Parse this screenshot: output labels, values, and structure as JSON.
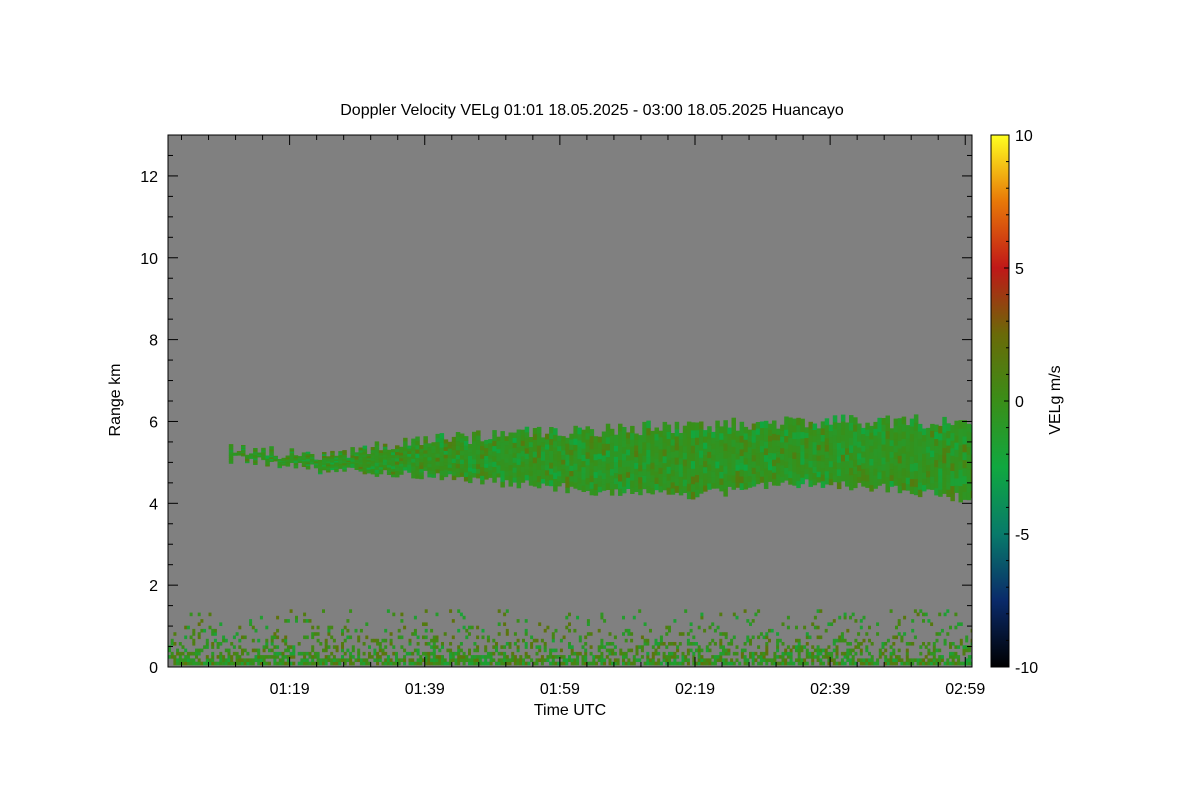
{
  "chart_data": {
    "type": "heatmap",
    "title": "Doppler Velocity VELg   01:01 18.05.2025 - 03:00 18.05.2025 Huancayo",
    "xlabel": "Time UTC",
    "ylabel": "Range km",
    "x_tick_labels": [
      "01:19",
      "01:39",
      "01:59",
      "02:19",
      "02:39",
      "02:59"
    ],
    "x_ticks_minutes_utc": [
      79,
      99,
      119,
      139,
      159,
      179
    ],
    "xlim_minutes_utc": [
      61,
      180
    ],
    "y_ticks": [
      0,
      2,
      4,
      6,
      8,
      10,
      12
    ],
    "y_tick_labels": [
      "0",
      "2",
      "4",
      "6",
      "8",
      "10",
      "12"
    ],
    "ylim": [
      0,
      13
    ],
    "colorbar": {
      "label": "VELg m/s",
      "range": [
        -10,
        10
      ],
      "ticks": [
        -10,
        -5,
        0,
        5,
        10
      ],
      "tick_labels": [
        "-10",
        "-5",
        "0",
        "5",
        "10"
      ],
      "colors": [
        "#000000",
        "#0a2a6a",
        "#087a6a",
        "#10a840",
        "#3a8e18",
        "#6a6a08",
        "#c01818",
        "#e87808",
        "#ffff20"
      ]
    },
    "background_color": "#808080",
    "cloud_layer": {
      "time_start": "01:10",
      "time_end": "03:00",
      "base_km": [
        5.1,
        4.8,
        4.7,
        4.5,
        4.3,
        4.2,
        4.5,
        4.4,
        4.1
      ],
      "top_km": [
        5.3,
        5.2,
        5.5,
        5.7,
        5.8,
        5.9,
        6.0,
        6.0,
        6.0
      ],
      "velocity_ms": [
        -1,
        0
      ]
    },
    "boundary_layer": {
      "range_km": [
        0,
        1.4
      ],
      "velocity_ms": [
        -2,
        2
      ]
    }
  }
}
